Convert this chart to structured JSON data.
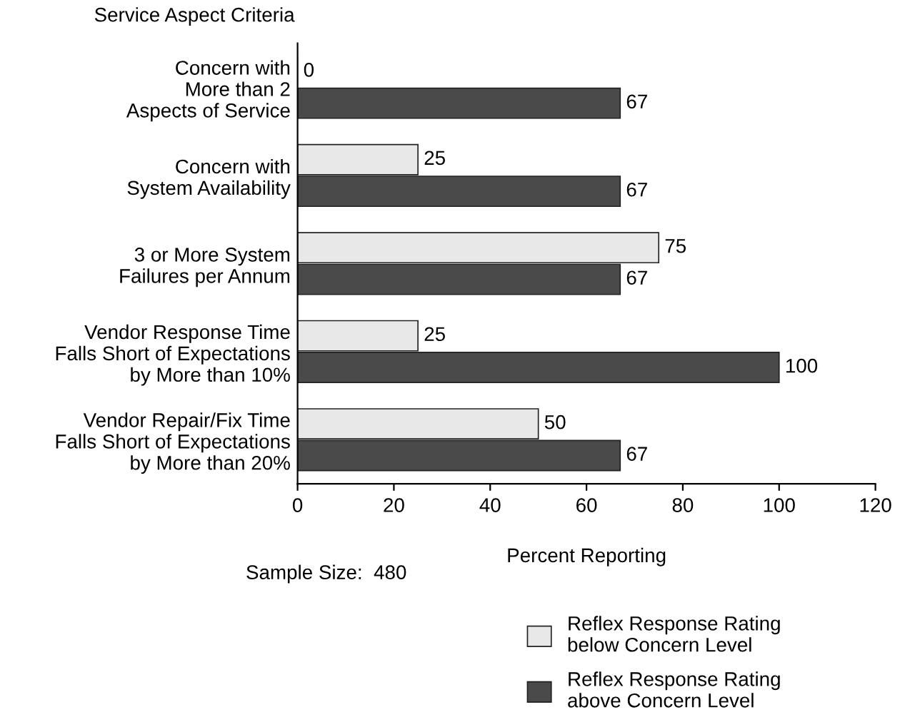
{
  "chart_data": {
    "type": "bar",
    "orientation": "horizontal",
    "title": "Service Aspect Criteria",
    "xlabel": "Percent Reporting",
    "categories": [
      "Concern with\nMore than 2\nAspects of Service",
      "Concern with\nSystem Availability",
      "3 or More System\nFailures per Annum",
      "Vendor Response Time\nFalls Short of Expectations\nby More than 10%",
      "Vendor Repair/Fix Time\nFalls Short of Expectations\nby More than 20%"
    ],
    "series": [
      {
        "name": "Reflex Response Rating\nbelow Concern Level",
        "color": "#e8e8e8",
        "values": [
          0,
          25,
          75,
          25,
          50
        ]
      },
      {
        "name": "Reflex Response Rating\nabove Concern Level",
        "color": "#4a4a4a",
        "values": [
          67,
          67,
          67,
          100,
          67
        ]
      }
    ],
    "xlim": [
      0,
      120
    ],
    "xticks": [
      0,
      20,
      40,
      60,
      80,
      100,
      120
    ],
    "data_labels": true,
    "legend": "bottom right",
    "grid": false,
    "annotations": [
      "Sample Size:  480"
    ]
  }
}
